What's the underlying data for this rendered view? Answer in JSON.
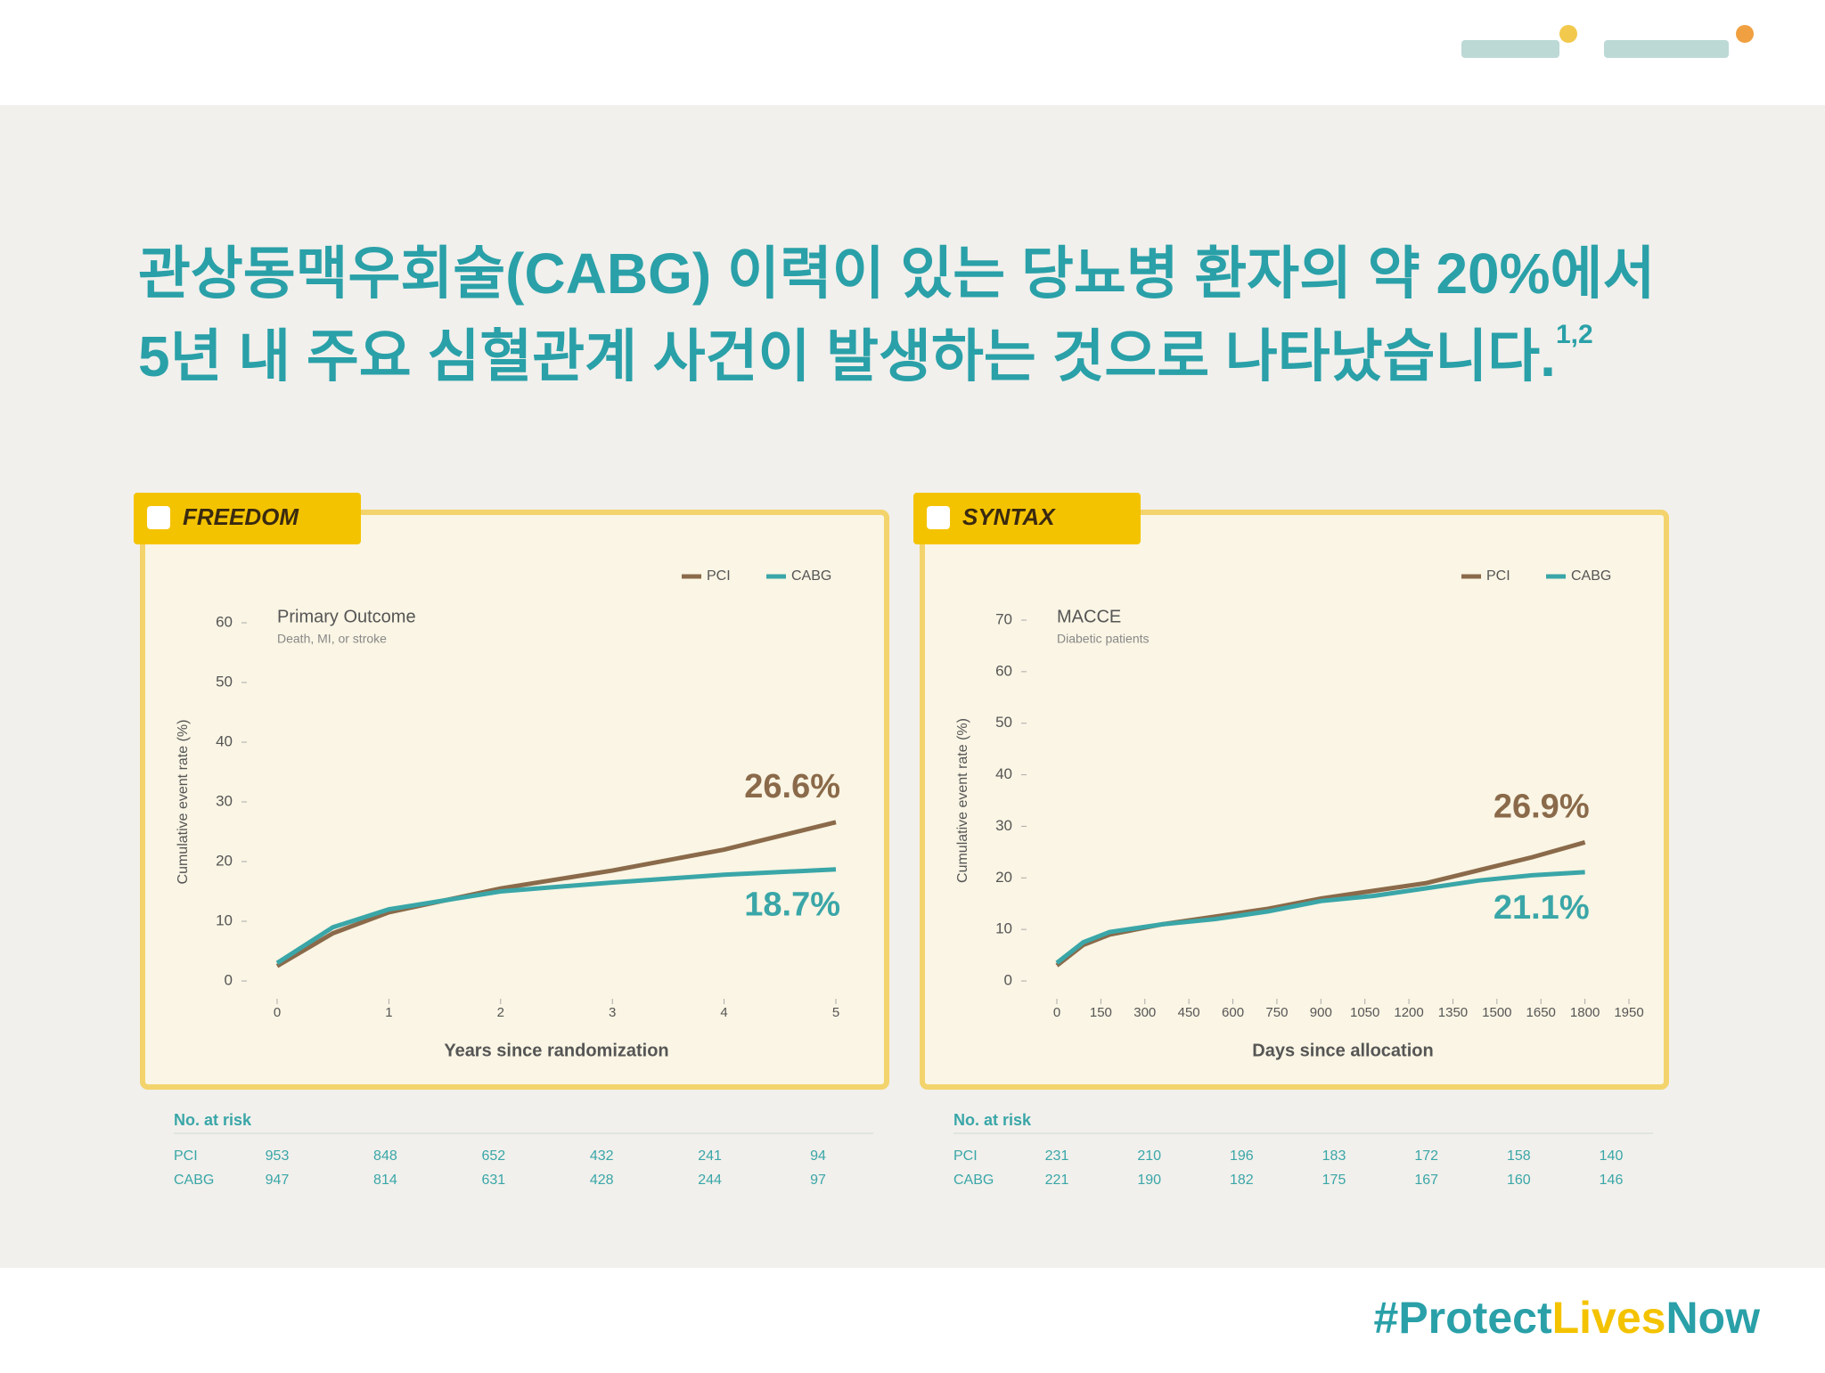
{
  "header": {
    "title_line1": "관상동맥우회술(CABG) 이력이 있는 당뇨병 환자의 약 20%에서",
    "title_line2": "5년 내 주요 심혈관계 사건이 발생하는 것으로 나타났습니다.",
    "title_ref": "1,2"
  },
  "chart_data": [
    {
      "type": "line",
      "tab": "FREEDOM",
      "title": "Primary Outcome",
      "subtitle": "Death, MI, or stroke",
      "xlabel": "Years since randomization",
      "ylabel": "Cumulative event rate (%)",
      "x": [
        0,
        0.5,
        1,
        2,
        3,
        4,
        5
      ],
      "xlim": [
        0,
        5
      ],
      "xticks": [
        0,
        1,
        2,
        3,
        4,
        5
      ],
      "ylim": [
        0,
        60
      ],
      "yticks": [
        0,
        10,
        20,
        30,
        40,
        50,
        60
      ],
      "series": [
        {
          "name": "PCI",
          "color": "#8a6a4a",
          "values": [
            2.5,
            8,
            11.5,
            15.5,
            18.5,
            22,
            26.6
          ],
          "value_labels": [
            null,
            null,
            null,
            null,
            null,
            null,
            "26.6%"
          ]
        },
        {
          "name": "CABG",
          "color": "#3aa6a8",
          "values": [
            3,
            9,
            12,
            15,
            16.5,
            17.8,
            18.7
          ],
          "value_labels": [
            null,
            null,
            null,
            null,
            null,
            null,
            "18.7%"
          ]
        }
      ],
      "risk_table": {
        "title": "No. at risk",
        "rows": [
          {
            "name": "PCI",
            "values": [
              953,
              848,
              652,
              432,
              241,
              94
            ]
          },
          {
            "name": "CABG",
            "values": [
              947,
              814,
              631,
              428,
              244,
              97
            ]
          }
        ]
      }
    },
    {
      "type": "line",
      "tab": "SYNTAX",
      "title": "MACCE",
      "subtitle": "Diabetic patients",
      "xlabel": "Days since allocation",
      "ylabel": "Cumulative event rate (%)",
      "x": [
        0,
        90,
        180,
        360,
        540,
        720,
        900,
        1080,
        1260,
        1440,
        1620,
        1800
      ],
      "xlim": [
        0,
        1950
      ],
      "xticks": [
        0,
        150,
        300,
        450,
        600,
        750,
        900,
        1050,
        1200,
        1350,
        1500,
        1650,
        1800,
        1950
      ],
      "ylim": [
        0,
        70
      ],
      "yticks": [
        0,
        10,
        20,
        30,
        40,
        50,
        60,
        70
      ],
      "series": [
        {
          "name": "PCI",
          "color": "#8a6a4a",
          "values": [
            3,
            7,
            9,
            11,
            12.5,
            14,
            16,
            17.5,
            19,
            21.5,
            24,
            26.9
          ],
          "value_labels": [
            null,
            null,
            null,
            null,
            null,
            null,
            null,
            null,
            null,
            null,
            null,
            "26.9%"
          ]
        },
        {
          "name": "CABG",
          "color": "#3aa6a8",
          "values": [
            3.5,
            7.5,
            9.5,
            11,
            12,
            13.5,
            15.5,
            16.5,
            18,
            19.5,
            20.5,
            21.1
          ],
          "value_labels": [
            null,
            null,
            null,
            null,
            null,
            null,
            null,
            null,
            null,
            null,
            null,
            "21.1%"
          ]
        }
      ],
      "risk_table": {
        "title": "No. at risk",
        "rows": [
          {
            "name": "PCI",
            "values": [
              231,
              210,
              196,
              183,
              172,
              158,
              140
            ]
          },
          {
            "name": "CABG",
            "values": [
              221,
              190,
              182,
              175,
              167,
              160,
              146
            ]
          }
        ]
      }
    }
  ],
  "footer": {
    "hashtag_1": "#Protect",
    "hashtag_2": "Lives",
    "hashtag_3": "Now"
  }
}
